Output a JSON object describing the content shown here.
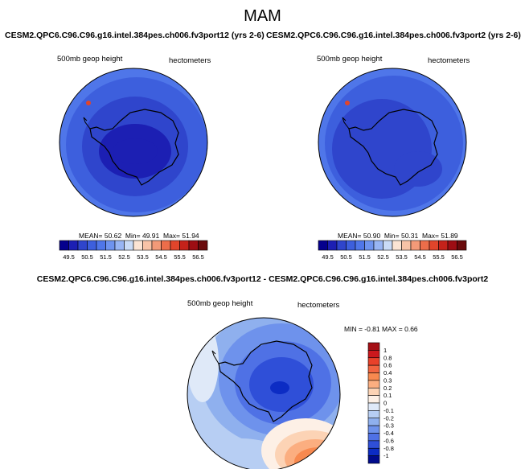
{
  "page": {
    "title": "MAM",
    "field_label": "500mb geop height",
    "units_label": "hectometers"
  },
  "panels": [
    {
      "title": "CESM2.QPC6.C96.C96.g16.intel.384pes.ch006.fv3port12 (yrs 2-6)",
      "mean_label": "MEAN=",
      "mean": "50.62",
      "min_label": "Min=",
      "min": "49.91",
      "max_label": "Max=",
      "max": "51.94"
    },
    {
      "title": "CESM2.QPC6.C96.C96.g16.intel.384pes.ch006.fv3port2 (yrs 2-6)",
      "mean_label": "MEAN=",
      "mean": "50.90",
      "min_label": "Min=",
      "min": "50.31",
      "max_label": "Max=",
      "max": "51.89"
    },
    {
      "title": "CESM2.QPC6.C96.C96.g16.intel.384pes.ch006.fv3port12 - CESM2.QPC6.C96.C96.g16.intel.384pes.ch006.fv3port2",
      "stats_text": "MIN = -0.81  MAX =  0.66"
    }
  ],
  "chart_data": [
    {
      "type": "heatmap",
      "projection": "south polar stereographic",
      "title": "CESM2.QPC6.C96.C96.g16.intel.384pes.ch006.fv3port12 (yrs 2-6)",
      "field": "500mb geop height",
      "units": "hectometers",
      "mean": 50.62,
      "min": 49.91,
      "max": 51.94,
      "colorbar_ticks": [
        "49.5",
        "50",
        "50.5",
        "51",
        "51.5",
        "52",
        "52.5",
        "53",
        "53.5",
        "54",
        "54.5",
        "55",
        "55.5",
        "56",
        "56.5"
      ],
      "colorbar_tick_labels": [
        "49.5",
        "50.5",
        "51.5",
        "52.5",
        "53.5",
        "54.5",
        "55.5",
        "56.5"
      ],
      "colorbar_colors": [
        "#05008d",
        "#1c1fb3",
        "#2f45cc",
        "#3d5fdd",
        "#4f76e9",
        "#6e93ef",
        "#98b5f4",
        "#c9dbf7",
        "#fbe4d4",
        "#f8c3a7",
        "#f39a78",
        "#ec6d4a",
        "#e0452b",
        "#c5221a",
        "#9d0d13",
        "#6a0a0c"
      ],
      "colorbar_orientation": "horizontal"
    },
    {
      "type": "heatmap",
      "projection": "south polar stereographic",
      "title": "CESM2.QPC6.C96.C96.g16.intel.384pes.ch006.fv3port2 (yrs 2-6)",
      "field": "500mb geop height",
      "units": "hectometers",
      "mean": 50.9,
      "min": 50.31,
      "max": 51.89,
      "colorbar_ticks": [
        "49.5",
        "50",
        "50.5",
        "51",
        "51.5",
        "52",
        "52.5",
        "53",
        "53.5",
        "54",
        "54.5",
        "55",
        "55.5",
        "56",
        "56.5"
      ],
      "colorbar_tick_labels": [
        "49.5",
        "50.5",
        "51.5",
        "52.5",
        "53.5",
        "54.5",
        "55.5",
        "56.5"
      ],
      "colorbar_colors": [
        "#05008d",
        "#1c1fb3",
        "#2f45cc",
        "#3d5fdd",
        "#4f76e9",
        "#6e93ef",
        "#98b5f4",
        "#c9dbf7",
        "#fbe4d4",
        "#f8c3a7",
        "#f39a78",
        "#ec6d4a",
        "#e0452b",
        "#c5221a",
        "#9d0d13",
        "#6a0a0c"
      ],
      "colorbar_orientation": "horizontal"
    },
    {
      "type": "heatmap",
      "projection": "south polar stereographic",
      "title": "CESM2.QPC6.C96.C96.g16.intel.384pes.ch006.fv3port12 - CESM2.QPC6.C96.C96.g16.intel.384pes.ch006.fv3port2",
      "field": "500mb geop height",
      "units": "hectometers",
      "min": -0.81,
      "max": 0.66,
      "colorbar_ticks": [
        "1",
        "0.8",
        "0.6",
        "0.4",
        "0.3",
        "0.2",
        "0.1",
        "0",
        "-0.1",
        "-0.2",
        "-0.3",
        "-0.4",
        "-0.6",
        "-0.8",
        "-1"
      ],
      "colorbar_colors": [
        "#a50f15",
        "#cb181d",
        "#e8412a",
        "#f16440",
        "#f7894f",
        "#fbae80",
        "#fcd3b5",
        "#fdf0e6",
        "#dfe9f8",
        "#b7cef3",
        "#8fb0ee",
        "#6e92ec",
        "#4f71e5",
        "#2f4fd8",
        "#0c2cc4",
        "#000b8c"
      ],
      "colorbar_orientation": "vertical"
    }
  ],
  "colors": {
    "land_outline": "#000000",
    "map_border": "#000000"
  }
}
